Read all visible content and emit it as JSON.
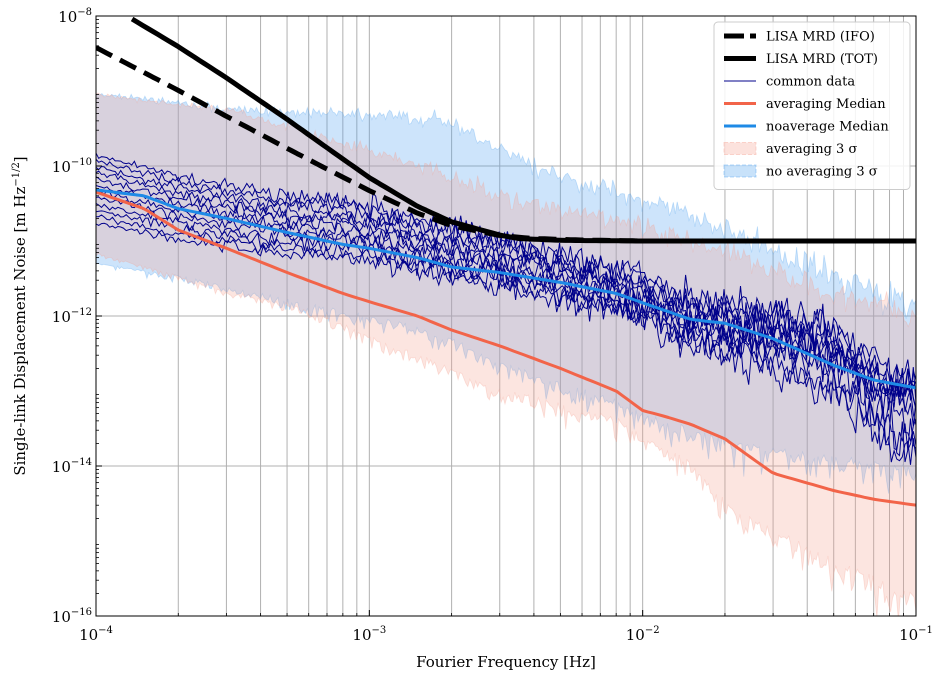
{
  "chart_data": {
    "type": "line",
    "xscale": "log",
    "yscale": "log",
    "xlim": [
      0.0001,
      0.1
    ],
    "ylim": [
      1e-16,
      1e-08
    ],
    "grid": true,
    "legend_position": "top-right",
    "xlabel": "Fourier Frequency [Hz]",
    "ylabel": "Single-link Displacement Noise [m Hz",
    "ylabel_exp": "−1/2",
    "ylabel_close": "]",
    "xticks": [
      {
        "value": 0.0001,
        "base": "10",
        "exp": "−4"
      },
      {
        "value": 0.001,
        "base": "10",
        "exp": "−3"
      },
      {
        "value": 0.01,
        "base": "10",
        "exp": "−2"
      },
      {
        "value": 0.1,
        "base": "10",
        "exp": "−1"
      }
    ],
    "yticks": [
      {
        "value": 1e-16,
        "base": "10",
        "exp": "−16"
      },
      {
        "value": 1e-14,
        "base": "10",
        "exp": "−14"
      },
      {
        "value": 1e-12,
        "base": "10",
        "exp": "−12"
      },
      {
        "value": 1e-10,
        "base": "10",
        "exp": "−10"
      },
      {
        "value": 1e-08,
        "base": "10",
        "exp": "−8"
      }
    ],
    "series": [
      {
        "name": "LISA MRD (IFO)",
        "kind": "line",
        "style": "dashed",
        "color": "#000000",
        "x": [
          0.0001,
          0.0002,
          0.0003,
          0.0005,
          0.0007,
          0.001,
          0.0015,
          0.002,
          0.003,
          0.004,
          0.006,
          0.01,
          0.03,
          0.1
        ],
        "y": [
          3.8e-09,
          1.02e-09,
          4.6e-10,
          1.72e-10,
          9.1e-11,
          4.7e-11,
          2.35e-11,
          1.6e-11,
          1.18e-11,
          1.08e-11,
          1.03e-11,
          1e-11,
          1e-11,
          1e-11
        ]
      },
      {
        "name": "LISA MRD (TOT)",
        "kind": "line",
        "style": "solid",
        "color": "#000000",
        "x": [
          0.00013,
          0.0002,
          0.0003,
          0.0005,
          0.0007,
          0.001,
          0.0015,
          0.002,
          0.003,
          0.0035,
          0.005,
          0.01,
          0.03,
          0.1
        ],
        "y": [
          1e-08,
          3.9e-09,
          1.5e-09,
          4.2e-10,
          1.75e-10,
          7e-11,
          2.9e-11,
          1.8e-11,
          1.2e-11,
          1.08e-11,
          1.02e-11,
          1e-11,
          1e-11,
          1e-11
        ]
      },
      {
        "name": "no averaging 3 σ",
        "kind": "band",
        "color": "#4a9ff0",
        "x": [
          0.0001,
          0.0002,
          0.0003,
          0.0005,
          0.0008,
          0.001,
          0.0015,
          0.002,
          0.003,
          0.005,
          0.008,
          0.01,
          0.02,
          0.03,
          0.05,
          0.1
        ],
        "upper": [
          9e-10,
          7e-10,
          5.8e-10,
          5.3e-10,
          5e-10,
          4.8e-10,
          4.4e-10,
          3.8e-10,
          1.5e-10,
          7.5e-11,
          4.5e-11,
          3.5e-11,
          1.5e-11,
          7.5e-12,
          3.5e-12,
          1.3e-12
        ],
        "lower": [
          5.2e-12,
          3.5e-12,
          2.5e-12,
          1.7e-12,
          1.2e-12,
          1e-12,
          7.5e-13,
          5.2e-13,
          2.5e-13,
          1.3e-13,
          8e-14,
          5e-14,
          2.5e-14,
          1.8e-14,
          1.4e-14,
          1e-14
        ]
      },
      {
        "name": "averaging 3 σ",
        "kind": "band",
        "color": "#f4a090",
        "x": [
          0.0001,
          0.0002,
          0.0003,
          0.0005,
          0.0008,
          0.001,
          0.0015,
          0.002,
          0.003,
          0.005,
          0.008,
          0.01,
          0.015,
          0.02,
          0.03,
          0.05,
          0.1
        ],
        "upper": [
          9e-10,
          6.5e-10,
          5.5e-10,
          3.5e-10,
          2e-10,
          1.6e-10,
          1e-10,
          7.5e-11,
          4e-11,
          2.5e-11,
          2e-11,
          1.5e-11,
          1e-11,
          7e-12,
          4e-12,
          2e-12,
          1e-12
        ],
        "lower": [
          7e-12,
          3.5e-12,
          2.2e-12,
          1.5e-12,
          8e-13,
          5.5e-13,
          3.2e-13,
          2e-13,
          1.1e-13,
          7e-14,
          4.5e-14,
          2.5e-14,
          1.2e-14,
          3.5e-15,
          1.5e-15,
          6e-16,
          2e-16
        ]
      },
      {
        "name": "common data",
        "kind": "multiline",
        "color": "#00008b",
        "count": 12,
        "x": [
          0.0001,
          0.0002,
          0.0003,
          0.0005,
          0.0008,
          0.001,
          0.0015,
          0.002,
          0.003,
          0.005,
          0.008,
          0.01,
          0.015,
          0.02,
          0.03,
          0.05,
          0.07,
          0.1
        ],
        "y_reference": [
          5e-11,
          2.8e-11,
          2.2e-11,
          1.65e-11,
          1.5e-11,
          1.3e-11,
          9e-12,
          7e-12,
          5.5e-12,
          3.3e-12,
          2.1e-12,
          1.7e-12,
          9e-13,
          8e-13,
          7e-13,
          4e-13,
          1.4e-13,
          9e-14
        ]
      },
      {
        "name": "averaging Median",
        "kind": "line",
        "style": "solid",
        "color": "#f26449",
        "x": [
          0.0001,
          0.00015,
          0.0002,
          0.0003,
          0.0005,
          0.0008,
          0.001,
          0.0015,
          0.002,
          0.003,
          0.005,
          0.008,
          0.01,
          0.012,
          0.015,
          0.02,
          0.03,
          0.05,
          0.07,
          0.1
        ],
        "y": [
          4.5e-11,
          2.7e-11,
          1.4e-11,
          8e-12,
          3.8e-12,
          2e-12,
          1.55e-12,
          1e-12,
          6.5e-13,
          4e-13,
          2e-13,
          1e-13,
          5.5e-14,
          4.6e-14,
          3.6e-14,
          2.3e-14,
          8e-15,
          4.7e-15,
          3.6e-15,
          3e-15
        ]
      },
      {
        "name": "noaverage Median",
        "kind": "line",
        "style": "solid",
        "color": "#1e8ae6",
        "x": [
          0.0001,
          0.00015,
          0.0002,
          0.0003,
          0.0005,
          0.0008,
          0.001,
          0.0015,
          0.002,
          0.003,
          0.005,
          0.008,
          0.01,
          0.015,
          0.02,
          0.03,
          0.05,
          0.07,
          0.1
        ],
        "y": [
          4.8e-11,
          4e-11,
          2.7e-11,
          2e-11,
          1.3e-11,
          9e-12,
          8e-12,
          6e-12,
          4.5e-12,
          3.8e-12,
          2.8e-12,
          2e-12,
          1.5e-12,
          9e-13,
          8e-13,
          5e-13,
          2.2e-13,
          1.4e-13,
          1.1e-13
        ]
      }
    ],
    "legend": [
      {
        "label": "LISA MRD (IFO)",
        "swatch": "dashed",
        "color": "#000000"
      },
      {
        "label": "LISA MRD (TOT)",
        "swatch": "thick",
        "color": "#000000"
      },
      {
        "label": "common data",
        "swatch": "thin",
        "color": "#00008b"
      },
      {
        "label": "averaging Median",
        "swatch": "line",
        "color": "#f26449"
      },
      {
        "label": "noaverage Median",
        "swatch": "line",
        "color": "#1e8ae6"
      },
      {
        "label": "averaging 3 σ",
        "swatch": "band",
        "color": "#f4a090"
      },
      {
        "label": "no averaging 3 σ",
        "swatch": "band",
        "color": "#4a9ff0"
      }
    ]
  }
}
